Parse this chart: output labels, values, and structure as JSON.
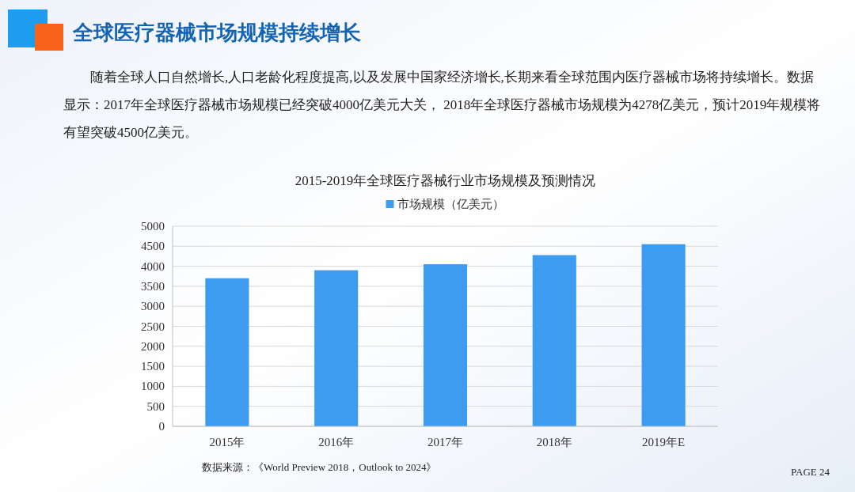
{
  "chart_data": {
    "type": "bar",
    "title": "全球医疗器械市场规模持续增长",
    "subtitle": "2015-2019年全球医疗器械行业市场规模及预测情况",
    "annotations": [
      "随着全球人口自然增长,人口老龄化程度提高,以及发展中国家经济增长,长期来看全球范围内医疗器械市场将持续增长。数据显示：2017年全球医疗器械市场规模已经突破4000亿美元大关， 2018年全球医疗器械市场规模为4278亿美元，预计2019年规模将有望突破4500亿美元。",
      "数据来源：《World Preview 2018，Outlook to 2024》",
      "PAGE 24"
    ],
    "categories": [
      "2015年",
      "2016年",
      "2017年",
      "2018年",
      "2019年E"
    ],
    "series": [
      {
        "name": "市场规模（亿美元）",
        "color": "#3d9bf0",
        "values": [
          3700,
          3900,
          4050,
          4278,
          4550
        ]
      }
    ],
    "ylim": [
      0,
      5000
    ],
    "yticks": [
      0,
      500,
      1000,
      1500,
      2000,
      2500,
      3000,
      3500,
      4000,
      4500,
      5000
    ],
    "grid": "y",
    "legend": "top"
  }
}
